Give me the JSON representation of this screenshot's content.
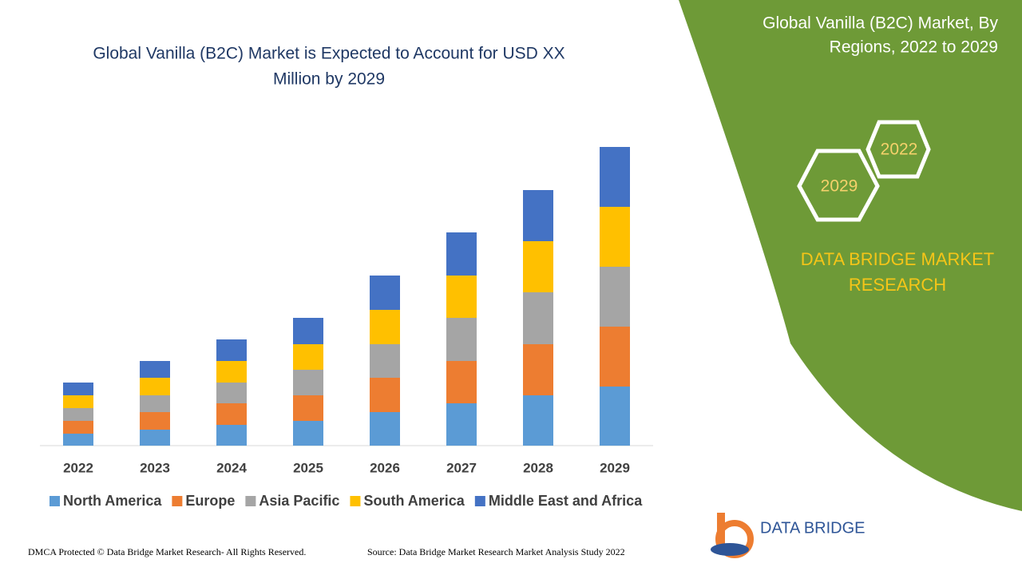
{
  "chart_data": {
    "type": "stacked-bar",
    "title_line1": "Global Vanilla (B2C) Market is Expected to Account for USD XX",
    "title_line2": "Million by 2029",
    "categories": [
      "2022",
      "2023",
      "2024",
      "2025",
      "2026",
      "2027",
      "2028",
      "2029"
    ],
    "series": [
      {
        "name": "North America",
        "color": "#5b9bd5",
        "values": [
          15,
          20,
          26,
          31,
          42,
          53,
          63,
          74
        ]
      },
      {
        "name": "Europe",
        "color": "#ed7d31",
        "values": [
          16,
          22,
          27,
          32,
          43,
          53,
          64,
          75
        ]
      },
      {
        "name": "Asia Pacific",
        "color": "#a5a5a5",
        "values": [
          16,
          21,
          26,
          32,
          42,
          54,
          65,
          75
        ]
      },
      {
        "name": "South America",
        "color": "#ffc000",
        "values": [
          16,
          22,
          27,
          32,
          43,
          53,
          64,
          75
        ]
      },
      {
        "name": "Middle East and Africa",
        "color": "#4472c4",
        "values": [
          16,
          21,
          27,
          33,
          43,
          54,
          64,
          75
        ]
      }
    ],
    "ylim": [
      0,
      400
    ],
    "legend": "bottom"
  },
  "panel": {
    "title_line1": "Global Vanilla (B2C) Market, By",
    "title_line2": "Regions, 2022 to 2029",
    "hex_top": "2022",
    "hex_bottom": "2029",
    "brand_line1": "DATA BRIDGE MARKET",
    "brand_line2": "RESEARCH",
    "logo_text": "DATA BRIDGE"
  },
  "footer": {
    "left": "DMCA Protected © Data Bridge Market Research- All Rights Reserved.",
    "right": "Source: Data Bridge Market Research Market Analysis Study 2022"
  }
}
